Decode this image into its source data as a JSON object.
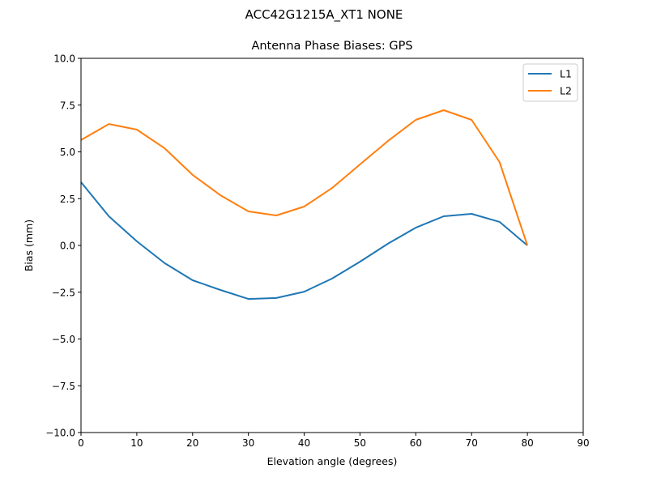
{
  "figure": {
    "suptitle": "ACC42G1215A_XT1 NONE",
    "title": "Antenna Phase Biases: GPS",
    "xlabel": "Elevation angle (degrees)",
    "ylabel": "Bias (mm)"
  },
  "chart_data": {
    "type": "line",
    "title": "Antenna Phase Biases: GPS",
    "suptitle": "ACC42G1215A_XT1 NONE",
    "xlabel": "Elevation angle (degrees)",
    "ylabel": "Bias (mm)",
    "xlim": [
      0,
      90
    ],
    "ylim": [
      -10,
      10
    ],
    "xticks": [
      0,
      10,
      20,
      30,
      40,
      50,
      60,
      70,
      80,
      90
    ],
    "xtick_labels": [
      "0",
      "10",
      "20",
      "30",
      "40",
      "50",
      "60",
      "70",
      "80",
      "90"
    ],
    "yticks": [
      -10,
      -7.5,
      -5,
      -2.5,
      0,
      2.5,
      5,
      7.5,
      10
    ],
    "ytick_labels": [
      "−10.0",
      "−7.5",
      "−5.0",
      "−2.5",
      "0.0",
      "2.5",
      "5.0",
      "7.5",
      "10.0"
    ],
    "grid": false,
    "legend_position": "upper right",
    "x": [
      0,
      5,
      10,
      15,
      20,
      25,
      30,
      35,
      40,
      45,
      50,
      55,
      60,
      65,
      70,
      75,
      80
    ],
    "series": [
      {
        "name": "L1",
        "color": "#1f77b4",
        "values": [
          3.38,
          1.56,
          0.22,
          -0.95,
          -1.86,
          -2.38,
          -2.86,
          -2.81,
          -2.47,
          -1.77,
          -0.87,
          0.09,
          0.95,
          1.56,
          1.69,
          1.26,
          0.0
        ]
      },
      {
        "name": "L2",
        "color": "#ff7f0e",
        "values": [
          5.63,
          6.49,
          6.19,
          5.19,
          3.77,
          2.68,
          1.82,
          1.6,
          2.08,
          3.07,
          4.33,
          5.58,
          6.71,
          7.23,
          6.71,
          4.46,
          0.0
        ]
      }
    ]
  }
}
